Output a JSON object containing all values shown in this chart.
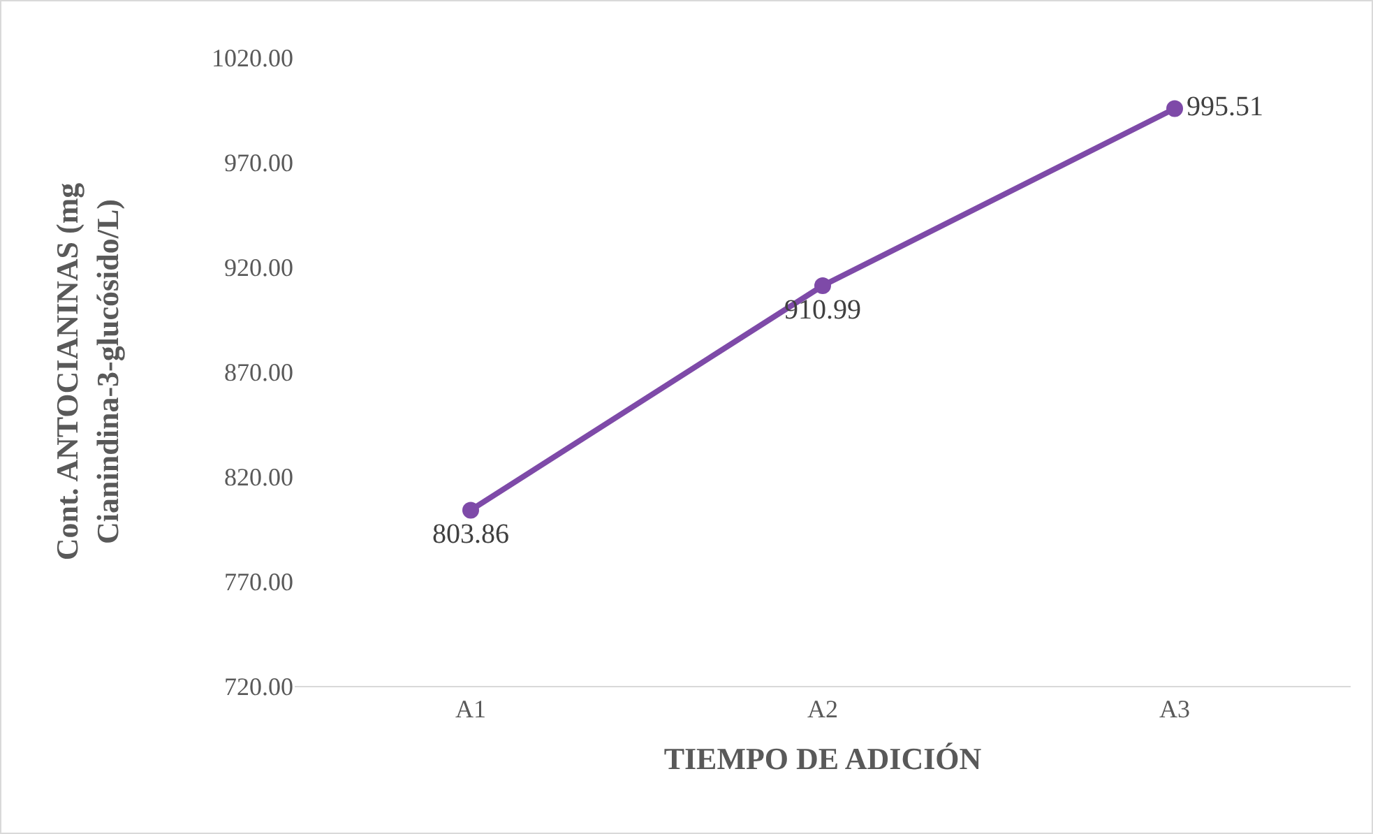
{
  "chart_data": {
    "type": "line",
    "xlabel": "TIEMPO DE ADICIÓN",
    "ylabel": "Cont. ANTOCIANINAS (mg\nCianindina-3-glucósido/L)",
    "categories": [
      "A1",
      "A2",
      "A3"
    ],
    "series": [
      {
        "color": "#7e4aa8",
        "values": [
          803.86,
          910.99,
          995.51
        ]
      }
    ],
    "ylim": [
      720,
      1020
    ],
    "yticks": [
      {
        "value": 720,
        "label": "720.00"
      },
      {
        "value": 770,
        "label": "770.00"
      },
      {
        "value": 820,
        "label": "820.00"
      },
      {
        "value": 870,
        "label": "870.00"
      },
      {
        "value": 920,
        "label": "920.00"
      },
      {
        "value": 970,
        "label": "970.00"
      },
      {
        "value": 1020,
        "label": "1020.00"
      }
    ],
    "grid": false,
    "legend": false,
    "marker": "circle",
    "line_style": "solid",
    "data_labels": true
  }
}
